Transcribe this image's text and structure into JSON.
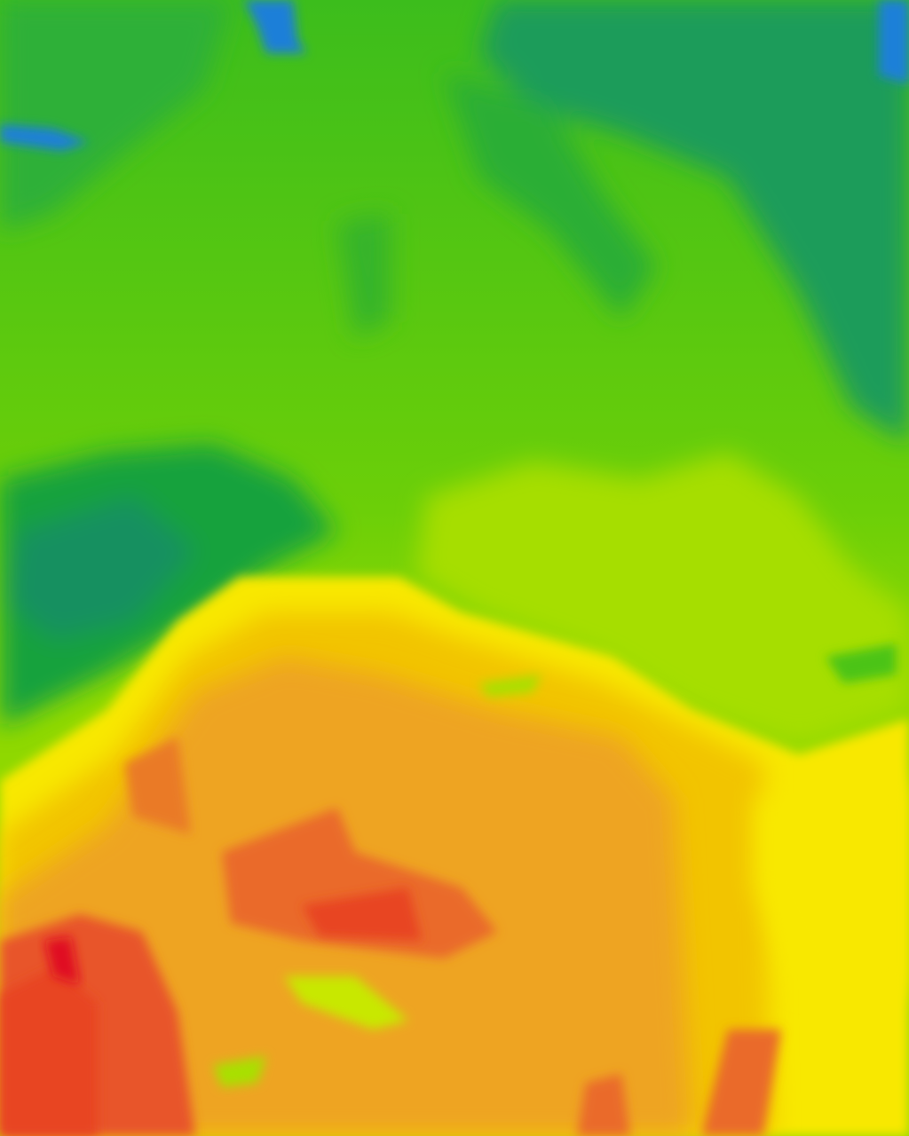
{
  "map": {
    "type": "temperature-heatmap-tile",
    "palette": {
      "cold_blue": "#1a7fd8",
      "teal": "#169a6a",
      "dark_green": "#14a83a",
      "green": "#4cc414",
      "lime": "#7fd300",
      "yellow_green": "#a8e000",
      "yellow": "#f8ea00",
      "gold": "#f2c800",
      "orange": "#eea020",
      "dark_orange": "#ea7a28",
      "red": "#e84424",
      "deep_red": "#e01020"
    }
  }
}
